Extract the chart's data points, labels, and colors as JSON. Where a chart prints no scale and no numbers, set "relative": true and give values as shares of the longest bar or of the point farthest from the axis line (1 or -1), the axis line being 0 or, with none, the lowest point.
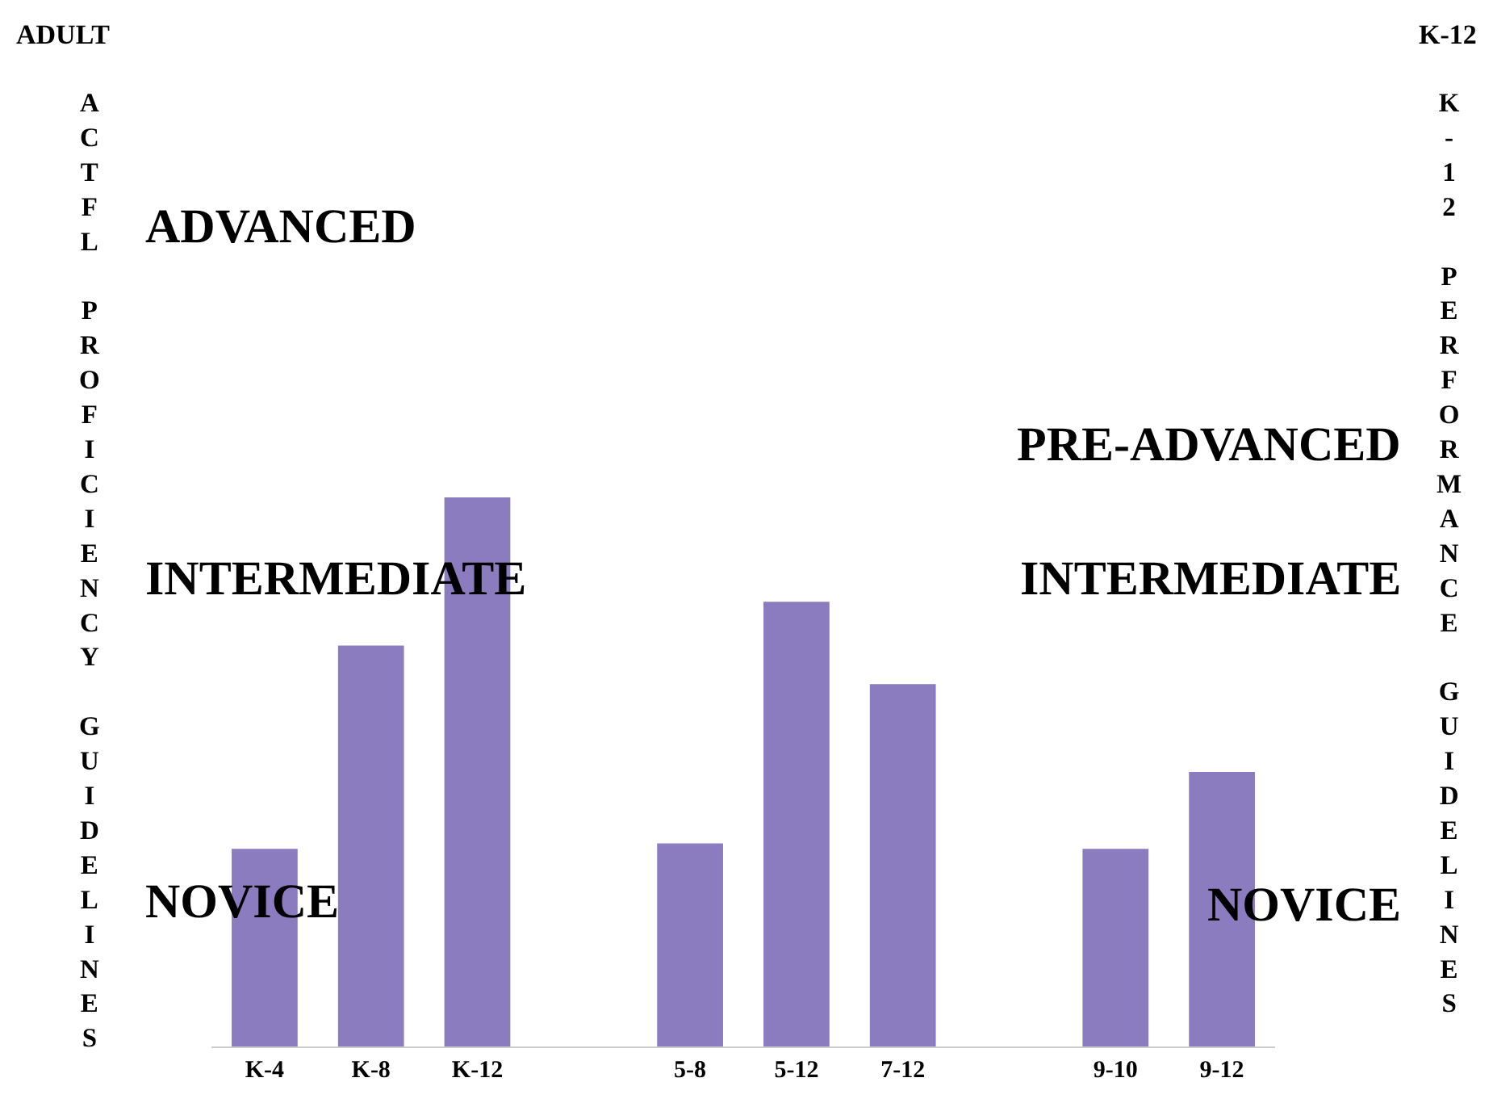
{
  "chart_data": {
    "type": "bar",
    "relative": true,
    "ylabel": "ACTFL PROFICIENCY GUIDELINES",
    "y2label": "K-12 PERFORMANCE GUIDELINES",
    "categories": [
      "K-4",
      "K-8",
      "K-12",
      null,
      "5-8",
      "5-12",
      "7-12",
      null,
      "9-10",
      "9-12"
    ],
    "values": [
      0.36,
      0.73,
      1,
      null,
      0.37,
      0.81,
      0.66,
      null,
      0.36,
      0.5
    ],
    "color": "#8b7bbf",
    "annotations": [
      "ADULT",
      "K-12",
      "ADVANCED",
      "INTERMEDIATE",
      "NOVICE",
      "PRE-ADVANCED",
      "INTERMEDIATE",
      "NOVICE"
    ],
    "legend": false
  }
}
